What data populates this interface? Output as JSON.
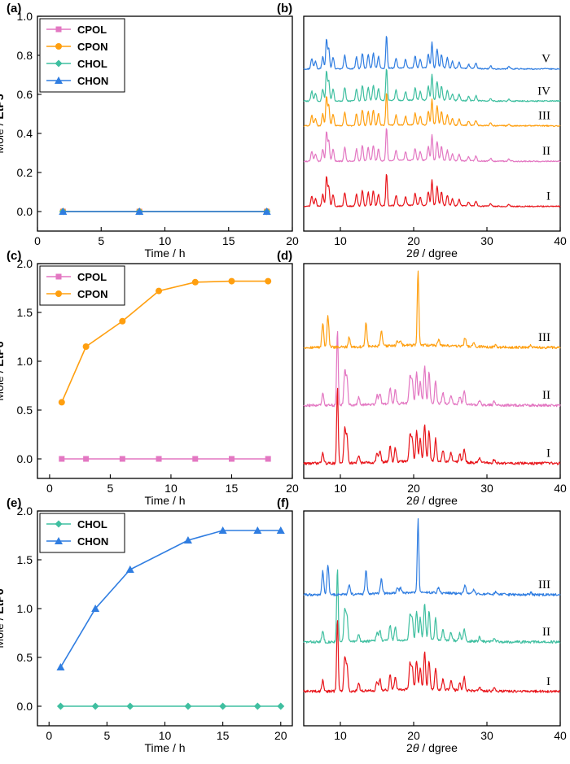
{
  "chart_data": [
    {
      "panel": "(a)",
      "type": "line",
      "xlabel": "Time / h",
      "ylabel_prefix": "Mole / ",
      "ylabel_bold": "EtP5",
      "xlim": [
        0,
        20
      ],
      "ylim": [
        -0.1,
        1.0
      ],
      "xticks": [
        0,
        5,
        10,
        15,
        20
      ],
      "yticks": [
        0.0,
        0.2,
        0.4,
        0.6,
        0.8,
        1.0
      ],
      "ytick_labels": [
        "0.0",
        "0.2",
        "0.4",
        "0.6",
        "0.8",
        "1.0"
      ],
      "legend": "top-left",
      "series": [
        {
          "name": "CPOL",
          "color": "#e377c2",
          "marker": "square",
          "x": [
            2,
            8,
            18
          ],
          "y": [
            0,
            0,
            0
          ]
        },
        {
          "name": "CPON",
          "color": "#ff9f0f",
          "marker": "circle",
          "x": [
            2,
            8,
            18
          ],
          "y": [
            0,
            0,
            0
          ]
        },
        {
          "name": "CHOL",
          "color": "#3fbfa0",
          "marker": "diamond",
          "x": [
            2,
            8,
            18
          ],
          "y": [
            0,
            0,
            0
          ]
        },
        {
          "name": "CHON",
          "color": "#2f7de1",
          "marker": "triangle",
          "x": [
            2,
            8,
            18
          ],
          "y": [
            0,
            0,
            0
          ]
        }
      ]
    },
    {
      "panel": "(b)",
      "type": "line",
      "xlabel_pre": "2",
      "xlabel_theta": "θ",
      "xlabel_post": " / dgree",
      "xlim": [
        5,
        40
      ],
      "xticks": [
        10,
        20,
        30,
        40
      ],
      "traces": [
        {
          "label": "I",
          "color": "#e8141a",
          "profile": "ibu"
        },
        {
          "label": "II",
          "color": "#e377c2",
          "profile": "ibu"
        },
        {
          "label": "III",
          "color": "#ff9f0f",
          "profile": "ibu"
        },
        {
          "label": "IV",
          "color": "#3fbfa0",
          "profile": "ibu"
        },
        {
          "label": "V",
          "color": "#2f7de1",
          "profile": "ibu"
        }
      ]
    },
    {
      "panel": "(c)",
      "type": "line",
      "xlabel": "Time / h",
      "ylabel_prefix": "Mole / ",
      "ylabel_bold": "EtP6",
      "xlim": [
        -1,
        20
      ],
      "ylim": [
        -0.2,
        2.0
      ],
      "xticks": [
        0,
        5,
        10,
        15,
        20
      ],
      "yticks": [
        0.0,
        0.5,
        1.0,
        1.5,
        2.0
      ],
      "ytick_labels": [
        "0.0",
        "0.5",
        "1.0",
        "1.5",
        "2.0"
      ],
      "legend": "top-left",
      "series": [
        {
          "name": "CPOL",
          "color": "#e377c2",
          "marker": "square",
          "x": [
            1,
            3,
            6,
            9,
            12,
            15,
            18
          ],
          "y": [
            0,
            0,
            0,
            0,
            0,
            0,
            0
          ]
        },
        {
          "name": "CPON",
          "color": "#ff9f0f",
          "marker": "circle",
          "x": [
            1,
            3,
            6,
            9,
            12,
            15,
            18
          ],
          "y": [
            0.58,
            1.15,
            1.41,
            1.72,
            1.81,
            1.82,
            1.82
          ]
        }
      ]
    },
    {
      "panel": "(d)",
      "type": "line",
      "xlabel_pre": "2",
      "xlabel_theta": "θ",
      "xlabel_post": " / dgree",
      "xlim": [
        5,
        40
      ],
      "xticks": [
        10,
        20,
        30,
        40
      ],
      "traces": [
        {
          "label": "I",
          "color": "#e8141a",
          "profile": "complex"
        },
        {
          "label": "II",
          "color": "#e377c2",
          "profile": "complex"
        },
        {
          "label": "III",
          "color": "#ff9f0f",
          "profile": "aux"
        }
      ]
    },
    {
      "panel": "(e)",
      "type": "line",
      "xlabel": "Time / h",
      "ylabel_prefix": "Mole / ",
      "ylabel_bold": "EtP6",
      "xlim": [
        -1,
        21
      ],
      "ylim": [
        -0.2,
        2.0
      ],
      "xticks": [
        0,
        5,
        10,
        15,
        20
      ],
      "yticks": [
        0.0,
        0.5,
        1.0,
        1.5,
        2.0
      ],
      "ytick_labels": [
        "0.0",
        "0.5",
        "1.0",
        "1.5",
        "2.0"
      ],
      "legend": "top-left",
      "series": [
        {
          "name": "CHOL",
          "color": "#3fbfa0",
          "marker": "diamond",
          "x": [
            1,
            4,
            7,
            12,
            15,
            18,
            20
          ],
          "y": [
            0,
            0,
            0,
            0,
            0,
            0,
            0
          ]
        },
        {
          "name": "CHON",
          "color": "#2f7de1",
          "marker": "triangle",
          "x": [
            1,
            4,
            7,
            12,
            15,
            18,
            20
          ],
          "y": [
            0.4,
            1.0,
            1.4,
            1.7,
            1.8,
            1.8,
            1.8
          ]
        }
      ]
    },
    {
      "panel": "(f)",
      "type": "line",
      "xlabel_pre": "2",
      "xlabel_theta": "θ",
      "xlabel_post": " / dgree",
      "xlim": [
        5,
        40
      ],
      "xticks": [
        10,
        20,
        30,
        40
      ],
      "traces": [
        {
          "label": "I",
          "color": "#e8141a",
          "profile": "complex"
        },
        {
          "label": "II",
          "color": "#3fbfa0",
          "profile": "complex"
        },
        {
          "label": "III",
          "color": "#2f7de1",
          "profile": "aux"
        }
      ]
    }
  ]
}
